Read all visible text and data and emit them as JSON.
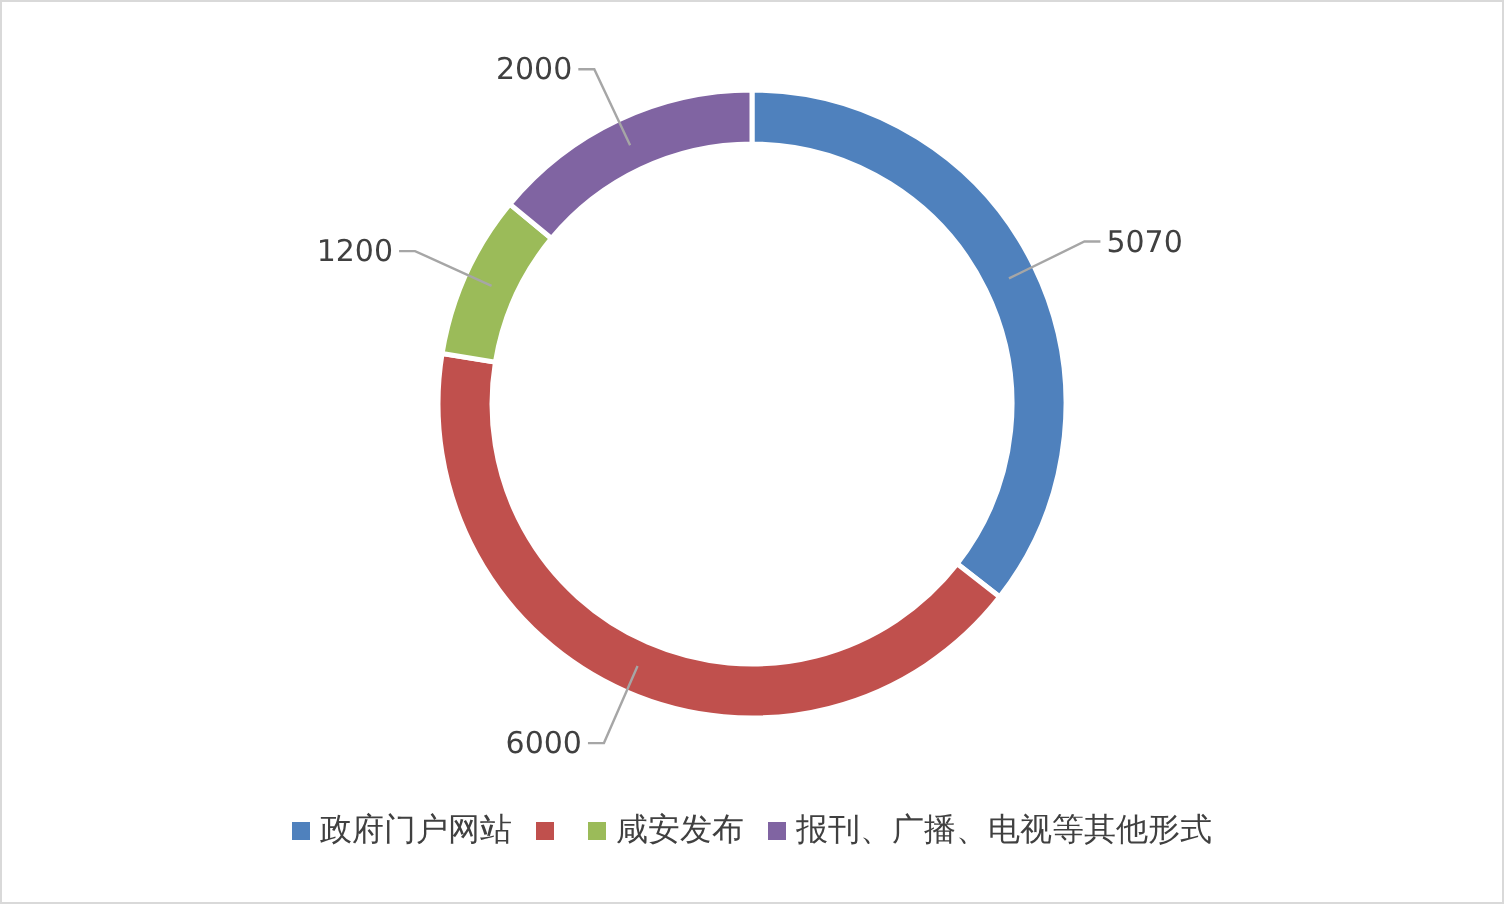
{
  "chart_data": {
    "type": "donut",
    "categories": [
      "政府门户网站",
      null,
      "咸安发布",
      "报刊、广播、电视等其他形式"
    ],
    "values": [
      5070,
      6000,
      1200,
      2000
    ],
    "colors": [
      "#4f81bd",
      "#c0504d",
      "#9bbb59",
      "#8064a2"
    ],
    "data_labels": true,
    "legend": "bottom"
  }
}
